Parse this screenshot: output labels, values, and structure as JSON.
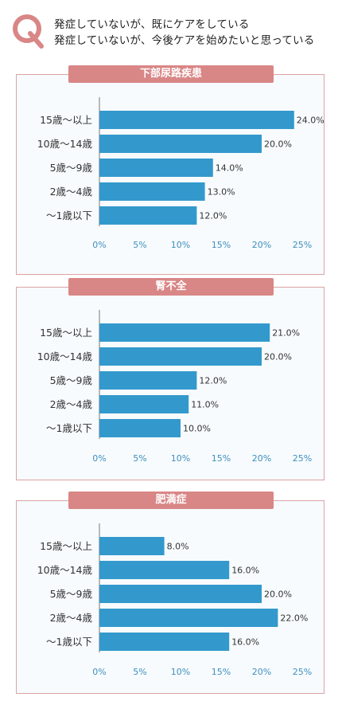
{
  "question": {
    "letter": "Q",
    "line1": "発症していないが、既にケアをしている",
    "line2": "発症していないが、今後ケアを始めたいと思っている"
  },
  "colors": {
    "bar": "#3399cc",
    "title_bg": "#d98686",
    "panel_border": "#dca3a3",
    "panel_bg": "#f7fbfd",
    "tick": "#3f8fbf",
    "q_icon": "#d98686"
  },
  "chart_data": [
    {
      "type": "bar",
      "orientation": "horizontal",
      "title": "下部尿路疾患",
      "categories": [
        "15歳〜以上",
        "10歳〜14歳",
        "5歳〜9歳",
        "2歳〜4歳",
        "〜1歳以下"
      ],
      "values": [
        24.0,
        20.0,
        14.0,
        13.0,
        12.0
      ],
      "value_labels": [
        "24.0%",
        "20.0%",
        "14.0%",
        "13.0%",
        "12.0%"
      ],
      "xlim": [
        0,
        25
      ],
      "xticks": [
        "0%",
        "5%",
        "10%",
        "15%",
        "20%",
        "25%"
      ]
    },
    {
      "type": "bar",
      "orientation": "horizontal",
      "title": "腎不全",
      "categories": [
        "15歳〜以上",
        "10歳〜14歳",
        "5歳〜9歳",
        "2歳〜4歳",
        "〜1歳以下"
      ],
      "values": [
        21.0,
        20.0,
        12.0,
        11.0,
        10.0
      ],
      "value_labels": [
        "21.0%",
        "20.0%",
        "12.0%",
        "11.0%",
        "10.0%"
      ],
      "xlim": [
        0,
        25
      ],
      "xticks": [
        "0%",
        "5%",
        "10%",
        "15%",
        "20%",
        "25%"
      ]
    },
    {
      "type": "bar",
      "orientation": "horizontal",
      "title": "肥満症",
      "categories": [
        "15歳〜以上",
        "10歳〜14歳",
        "5歳〜9歳",
        "2歳〜4歳",
        "〜1歳以下"
      ],
      "values": [
        8.0,
        16.0,
        20.0,
        22.0,
        16.0
      ],
      "value_labels": [
        "8.0%",
        "16.0%",
        "20.0%",
        "22.0%",
        "16.0%"
      ],
      "xlim": [
        0,
        25
      ],
      "xticks": [
        "0%",
        "5%",
        "10%",
        "15%",
        "20%",
        "25%"
      ]
    }
  ]
}
